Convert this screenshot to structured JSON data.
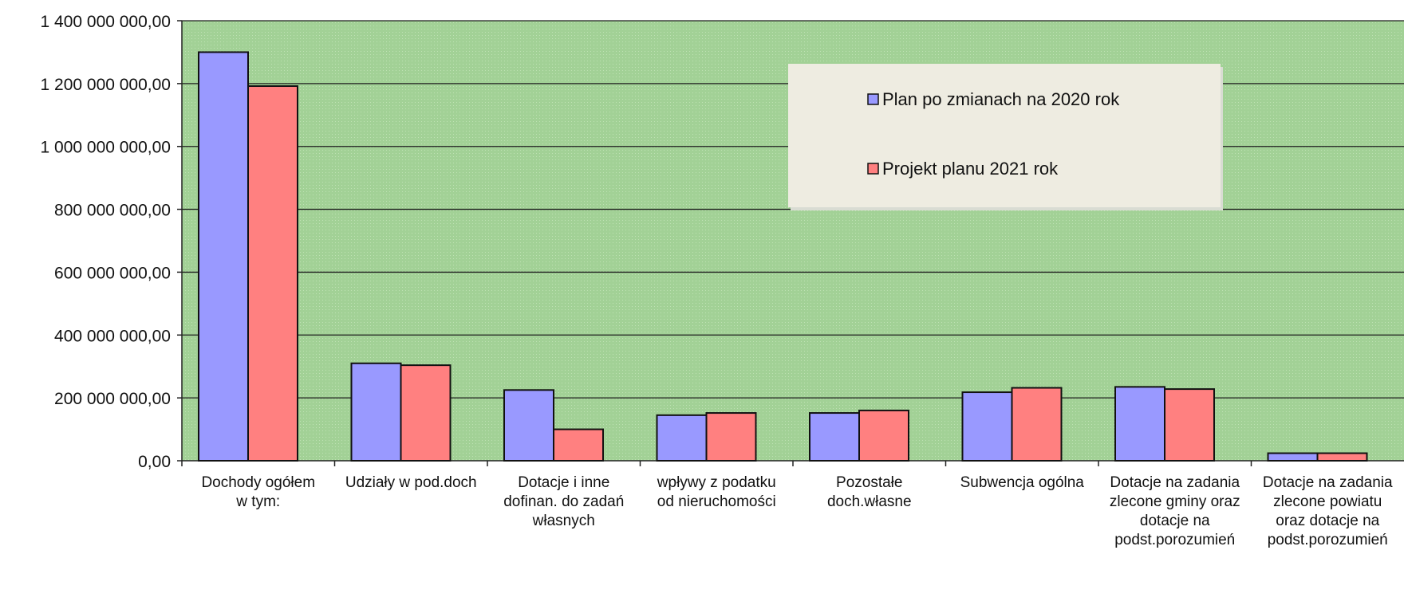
{
  "chart_data": {
    "type": "bar",
    "categories": [
      [
        "Dochody ogółem",
        "w tym:"
      ],
      [
        "Udziały w pod.doch"
      ],
      [
        "Dotacje i inne",
        "dofinan. do zadań",
        "własnych"
      ],
      [
        "wpływy z podatku",
        "od nieruchomości"
      ],
      [
        "Pozostałe",
        "doch.własne"
      ],
      [
        "Subwencja ogólna"
      ],
      [
        "Dotacje na zadania",
        "zlecone gminy oraz",
        "dotacje na",
        "podst.porozumień"
      ],
      [
        "Dotacje na zadania",
        "zlecone powiatu",
        "oraz dotacje na",
        "podst.porozumień"
      ]
    ],
    "series": [
      {
        "name": "Plan po zmianach na 2020 rok",
        "color": "#9999ff",
        "values": [
          1300000000,
          310000000,
          225000000,
          145000000,
          152000000,
          218000000,
          235000000,
          24000000
        ]
      },
      {
        "name": "Projekt planu 2021 rok",
        "color": "#ff8080",
        "values": [
          1192000000,
          304000000,
          100000000,
          152000000,
          160000000,
          232000000,
          228000000,
          24000000
        ]
      }
    ],
    "ylim": [
      0,
      1400000000
    ],
    "yticks": [
      0,
      200000000,
      400000000,
      600000000,
      800000000,
      1000000000,
      1200000000,
      1400000000
    ],
    "ytick_labels": [
      "0,00",
      "200 000 000,00",
      "400 000 000,00",
      "600 000 000,00",
      "800 000 000,00",
      "1 000 000 000,00",
      "1 200 000 000,00",
      "1 400 000 000,00"
    ],
    "grid": true,
    "legend_position": "top-right",
    "plot_background": "#a6d49a",
    "legend_background": "#eeece1"
  }
}
